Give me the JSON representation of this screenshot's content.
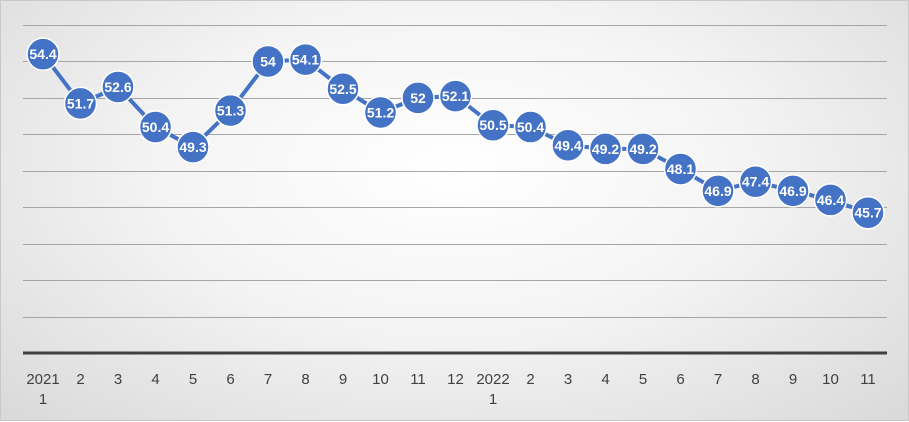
{
  "chart_data": {
    "type": "line",
    "title": "",
    "xlabel": "",
    "ylabel": "",
    "ylim": [
      38,
      56
    ],
    "grid": true,
    "legend": "none",
    "categories": [
      [
        "2021",
        "1"
      ],
      [
        "2"
      ],
      [
        "3"
      ],
      [
        "4"
      ],
      [
        "5"
      ],
      [
        "6"
      ],
      [
        "7"
      ],
      [
        "8"
      ],
      [
        "9"
      ],
      [
        "10"
      ],
      [
        "11"
      ],
      [
        "12"
      ],
      [
        "2022",
        "1"
      ],
      [
        "2"
      ],
      [
        "3"
      ],
      [
        "4"
      ],
      [
        "5"
      ],
      [
        "6"
      ],
      [
        "7"
      ],
      [
        "8"
      ],
      [
        "9"
      ],
      [
        "10"
      ],
      [
        "11"
      ]
    ],
    "series": [
      {
        "values": [
          54.4,
          51.7,
          52.6,
          50.4,
          49.3,
          51.3,
          54,
          54.1,
          52.5,
          51.2,
          52,
          52.1,
          50.5,
          50.4,
          49.4,
          49.2,
          49.2,
          48.1,
          46.9,
          47.4,
          46.9,
          46.4,
          45.7
        ],
        "color": "#4472c4"
      }
    ]
  }
}
